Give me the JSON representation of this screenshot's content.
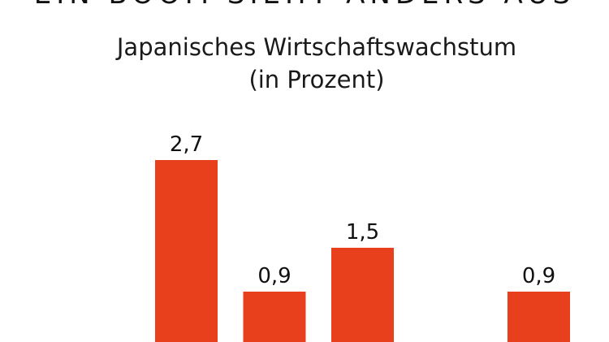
{
  "header": {
    "headline_cut": "EIN BOOM SIEHT ANDERS AUS"
  },
  "chart_data": {
    "type": "bar",
    "title": "Japanisches Wirtschaftswachstum",
    "subtitle": "(in Prozent)",
    "xlabel": "",
    "ylabel": "",
    "categories": [
      "",
      "",
      "",
      "",
      ""
    ],
    "values": [
      2.7,
      0.9,
      1.5,
      null,
      0.9
    ],
    "value_labels": [
      "2,7",
      "0,9",
      "1,5",
      "",
      "0,9"
    ],
    "bar_color": "#e8401c",
    "grid": false,
    "legend": "none"
  }
}
